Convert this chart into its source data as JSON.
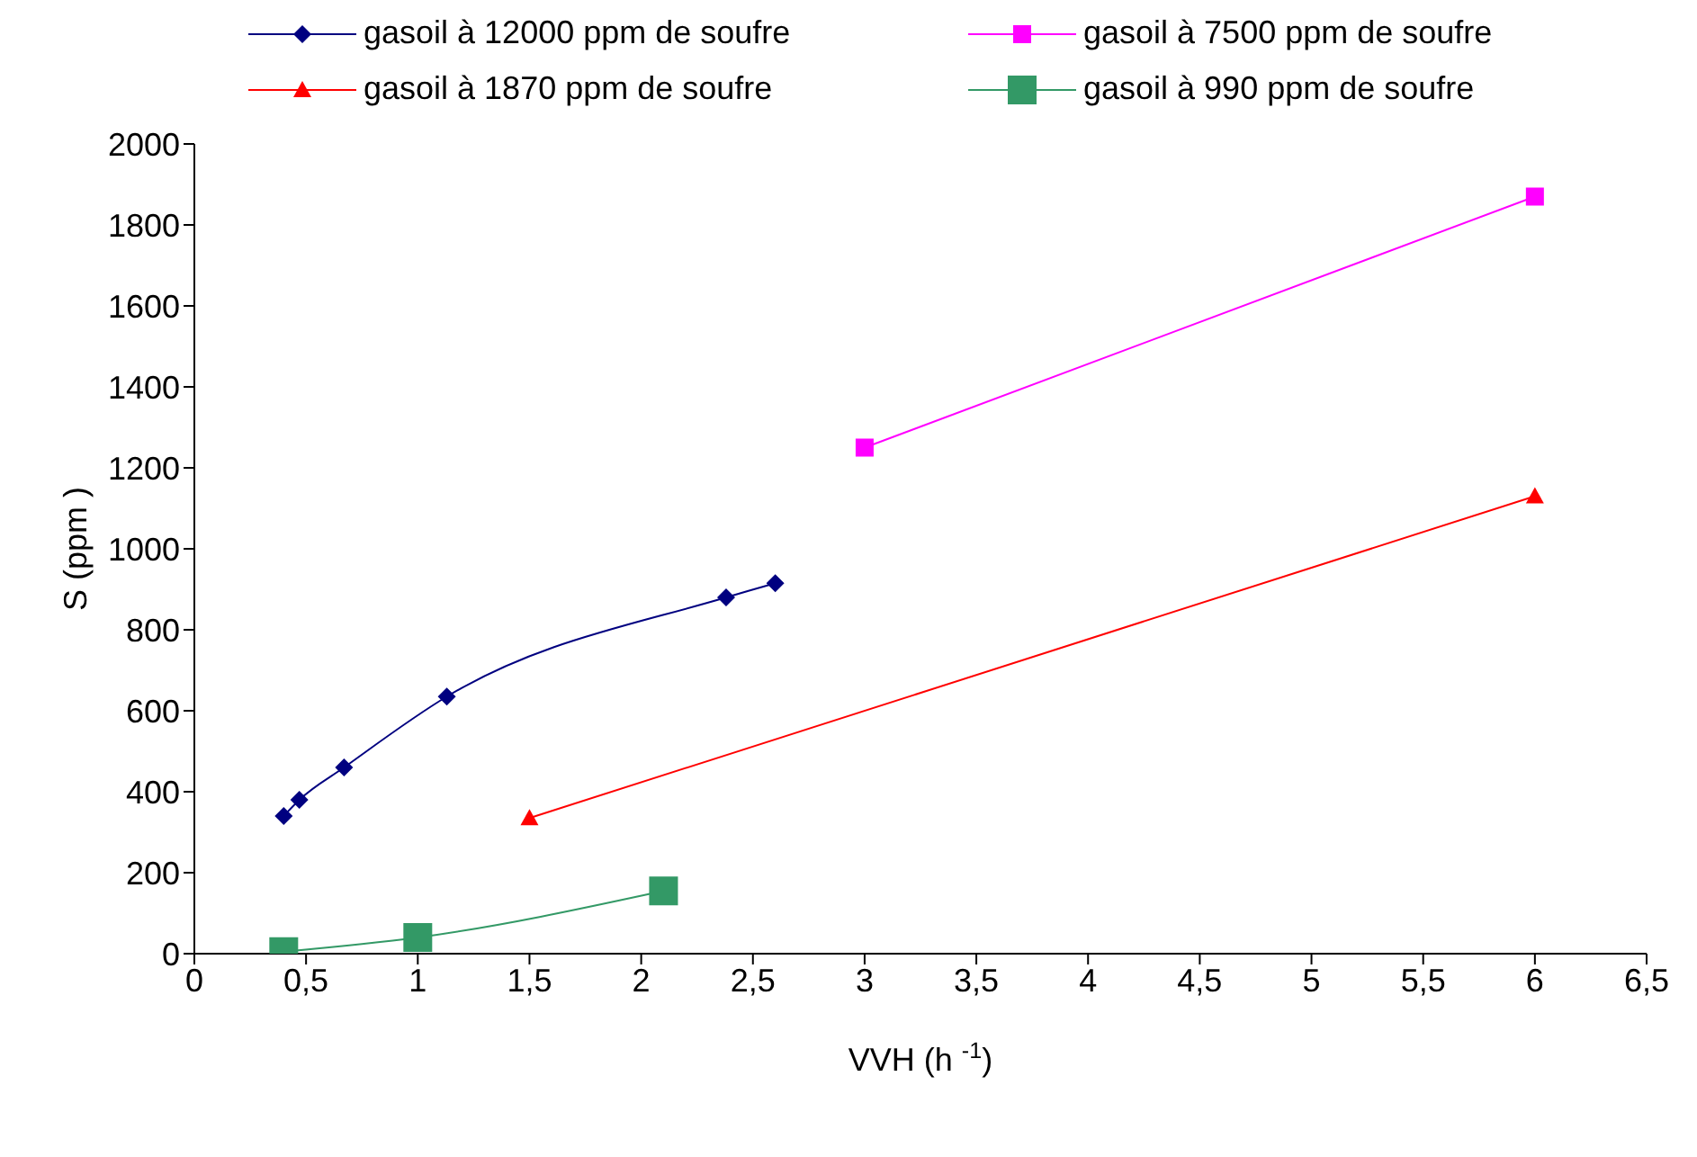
{
  "chart_data": {
    "type": "line",
    "xlabel": "VVH (h $^{-1}$)",
    "ylabel": "S  (ppm )",
    "xlim": [
      0,
      6.5
    ],
    "xticks": [
      0,
      {
        "value": 0.5,
        "label": "0,5"
      },
      1,
      {
        "value": 1.5,
        "label": "1,5"
      },
      2,
      {
        "value": 2.5,
        "label": "2,5"
      },
      3,
      {
        "value": 3.5,
        "label": "3,5"
      },
      4,
      {
        "value": 4.5,
        "label": "4,5"
      },
      5,
      {
        "value": 5.5,
        "label": "5,5"
      },
      6,
      {
        "value": 6.5,
        "label": "6,5"
      }
    ],
    "ylim": [
      0,
      2000
    ],
    "yticks": [
      0,
      200,
      400,
      600,
      800,
      1000,
      1200,
      1400,
      1600,
      1800,
      2000
    ],
    "legend": "top",
    "series": [
      {
        "name": "gasoil à 12000 ppm de soufre",
        "color": "#000080",
        "marker": "diamond",
        "x": [
          0.4,
          0.47,
          0.67,
          1.13,
          2.38,
          2.6
        ],
        "values": [
          340,
          380,
          460,
          635,
          880,
          915
        ]
      },
      {
        "name": "gasoil à 7500 ppm de soufre",
        "color": "#ff00ff",
        "marker": "square",
        "x": [
          3,
          6
        ],
        "values": [
          1250,
          1870
        ]
      },
      {
        "name": "gasoil à 1870 ppm de soufre",
        "color": "#ff0000",
        "marker": "triangle",
        "x": [
          1.5,
          6
        ],
        "values": [
          335,
          1130
        ]
      },
      {
        "name": "gasoil à 990 ppm de soufre",
        "color": "#339966",
        "marker": "square",
        "x": [
          0.4,
          1,
          2.1
        ],
        "values": [
          5,
          40,
          155
        ]
      }
    ]
  }
}
